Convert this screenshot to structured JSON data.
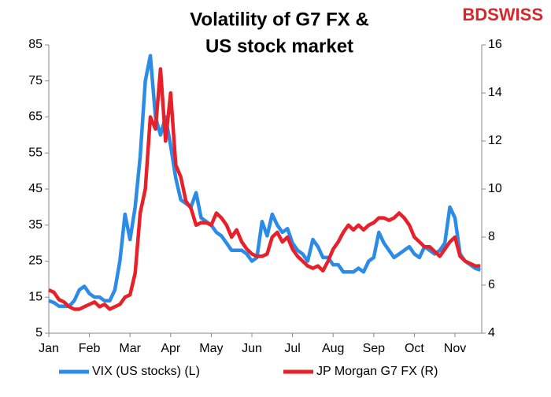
{
  "chart_data": {
    "type": "line",
    "title": [
      "Volatility of G7 FX &",
      "US stock market"
    ],
    "logo": "BDSWISS",
    "categories": [
      "Jan",
      null,
      null,
      null,
      null,
      null,
      null,
      null,
      "Feb",
      null,
      null,
      null,
      null,
      null,
      null,
      null,
      "Mar",
      null,
      null,
      null,
      null,
      null,
      null,
      null,
      "Apr",
      null,
      null,
      null,
      null,
      null,
      null,
      null,
      "May",
      null,
      null,
      null,
      null,
      null,
      null,
      null,
      "Jun",
      null,
      null,
      null,
      null,
      null,
      null,
      null,
      "Jul",
      null,
      null,
      null,
      null,
      null,
      null,
      null,
      "Aug",
      null,
      null,
      null,
      null,
      null,
      null,
      null,
      "Sep",
      null,
      null,
      null,
      null,
      null,
      null,
      null,
      "Oct",
      null,
      null,
      null,
      null,
      null,
      null,
      null,
      "Nov",
      null,
      null,
      null,
      null,
      null
    ],
    "series": [
      {
        "name": "VIX (US stocks) (L)",
        "color": "#2b8ce8",
        "axis": "y",
        "values": [
          14,
          13.5,
          12.5,
          12.5,
          12.5,
          14,
          17,
          18,
          16,
          15,
          15,
          14,
          14,
          17,
          25,
          38,
          31,
          40,
          54,
          75,
          82,
          65,
          60,
          65,
          57,
          48,
          42,
          41,
          40,
          44,
          37,
          36,
          35,
          33,
          32,
          30,
          28,
          28,
          28,
          27,
          25,
          26,
          36,
          32,
          38,
          35,
          33,
          34,
          30,
          28,
          27,
          25,
          31,
          29,
          26,
          26,
          24,
          24,
          22,
          22,
          22,
          23,
          22,
          25,
          26,
          33,
          30,
          28,
          26,
          27,
          28,
          29,
          27,
          26,
          29,
          28,
          27,
          28,
          30,
          40,
          37,
          27,
          25,
          24,
          23,
          22.5
        ]
      },
      {
        "name": "JP Morgan G7 FX (R)",
        "color": "#e8202a",
        "axis": "y2",
        "values": [
          5.8,
          5.7,
          5.4,
          5.3,
          5.1,
          5.0,
          5.0,
          5.1,
          5.2,
          5.3,
          5.1,
          5.2,
          5.0,
          5.1,
          5.2,
          5.5,
          5.6,
          6.5,
          9.0,
          10.0,
          13.0,
          12.5,
          15.0,
          12.0,
          14.0,
          11.0,
          10.5,
          9.5,
          9.2,
          8.5,
          8.6,
          8.6,
          8.5,
          9.0,
          8.8,
          8.5,
          8.0,
          8.3,
          7.8,
          7.5,
          7.3,
          7.2,
          7.2,
          7.3,
          8.0,
          8.2,
          7.8,
          8.0,
          7.5,
          7.2,
          7.0,
          6.8,
          6.7,
          6.8,
          6.6,
          7.0,
          7.5,
          7.8,
          8.2,
          8.5,
          8.3,
          8.5,
          8.3,
          8.5,
          8.6,
          8.8,
          8.8,
          8.7,
          8.8,
          9.0,
          8.8,
          8.5,
          8.0,
          7.8,
          7.6,
          7.6,
          7.4,
          7.2,
          7.5,
          7.8,
          8.0,
          7.2,
          7.0,
          6.9,
          6.8,
          6.8
        ]
      }
    ],
    "ylim": [
      5,
      85
    ],
    "yticks": [
      5,
      15,
      25,
      35,
      45,
      55,
      65,
      75,
      85
    ],
    "y2lim": [
      4,
      16
    ],
    "y2ticks": [
      4,
      6,
      8,
      10,
      12,
      14,
      16
    ],
    "legend": "bottom"
  }
}
